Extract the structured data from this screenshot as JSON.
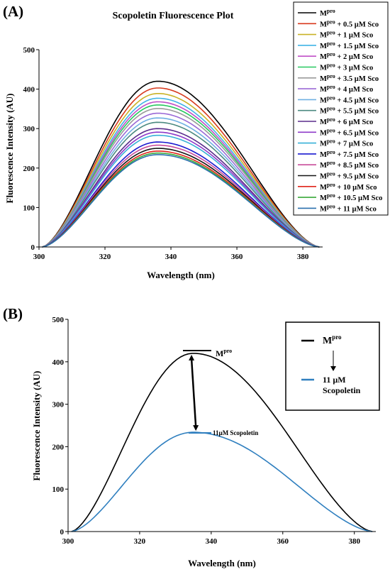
{
  "panels": {
    "a_label": "(A)",
    "b_label": "(B)"
  },
  "chart_data": [
    {
      "type": "line",
      "title": "Scopoletin Fluorescence Plot",
      "xlabel": "Wavelength (nm)",
      "ylabel": "Fluorescence Intensity (AU)",
      "xlim": [
        300,
        386
      ],
      "ylim": [
        0,
        500
      ],
      "xticks": [
        300,
        320,
        340,
        360,
        380
      ],
      "yticks": [
        0,
        100,
        200,
        300,
        400,
        500
      ],
      "peak_x": 336,
      "legend_position": "top-right",
      "series": [
        {
          "name_base": "M",
          "name_sup": "pro",
          "name_rest": "",
          "color": "#000000",
          "peak": 420
        },
        {
          "name_base": "M",
          "name_sup": "pro",
          "name_rest": " + 0.5 µM Sco",
          "color": "#d83a1e",
          "peak": 403
        },
        {
          "name_base": "M",
          "name_sup": "pro",
          "name_rest": " + 1 µM Sco",
          "color": "#c9b227",
          "peak": 389
        },
        {
          "name_base": "M",
          "name_sup": "pro",
          "name_rest": " + 1.5 µM Sco",
          "color": "#41b4e6",
          "peak": 377
        },
        {
          "name_base": "M",
          "name_sup": "pro",
          "name_rest": " + 2 µM Sco",
          "color": "#c050c8",
          "peak": 368
        },
        {
          "name_base": "M",
          "name_sup": "pro",
          "name_rest": " + 3 µM Sco",
          "color": "#28c860",
          "peak": 360
        },
        {
          "name_base": "M",
          "name_sup": "pro",
          "name_rest": " + 3.5 µM Sco",
          "color": "#9a9a9a",
          "peak": 351
        },
        {
          "name_base": "M",
          "name_sup": "pro",
          "name_rest": " + 4 µM Sco",
          "color": "#9b6ad6",
          "peak": 339
        },
        {
          "name_base": "M",
          "name_sup": "pro",
          "name_rest": " + 4.5 µM Sco",
          "color": "#6fb0e2",
          "peak": 327
        },
        {
          "name_base": "M",
          "name_sup": "pro",
          "name_rest": " + 5.5 µM Sco",
          "color": "#4c8a80",
          "peak": 316
        },
        {
          "name_base": "M",
          "name_sup": "pro",
          "name_rest": " + 6 µM Sco",
          "color": "#5a2d8c",
          "peak": 300
        },
        {
          "name_base": "M",
          "name_sup": "pro",
          "name_rest": " + 6.5 µM Sco",
          "color": "#8e3ac9",
          "peak": 291
        },
        {
          "name_base": "M",
          "name_sup": "pro",
          "name_rest": " + 7 µM Sco",
          "color": "#37b0d8",
          "peak": 283
        },
        {
          "name_base": "M",
          "name_sup": "pro",
          "name_rest": " + 7.5 µM Sco",
          "color": "#1a1ad0",
          "peak": 266
        },
        {
          "name_base": "M",
          "name_sup": "pro",
          "name_rest": " + 8.5 µM Sco",
          "color": "#c84c9a",
          "peak": 258
        },
        {
          "name_base": "M",
          "name_sup": "pro",
          "name_rest": " + 9.5 µM Sco",
          "color": "#151515",
          "peak": 250
        },
        {
          "name_base": "M",
          "name_sup": "pro",
          "name_rest": " + 10 µM Sco",
          "color": "#e0241a",
          "peak": 243
        },
        {
          "name_base": "M",
          "name_sup": "pro",
          "name_rest": " + 10.5 µM Sco",
          "color": "#3aa83a",
          "peak": 238
        },
        {
          "name_base": "M",
          "name_sup": "pro",
          "name_rest": " + 11 µM Sco",
          "color": "#2a6fae",
          "peak": 234
        }
      ]
    },
    {
      "type": "line",
      "title": "",
      "xlabel": "Wavelength (nm)",
      "ylabel": "Fluorescence Intensity (AU)",
      "xlim": [
        300,
        386
      ],
      "ylim": [
        0,
        500
      ],
      "xticks": [
        300,
        320,
        340,
        360,
        380
      ],
      "yticks": [
        0,
        100,
        200,
        300,
        400,
        500
      ],
      "peak_x": 335,
      "legend_position": "top-right",
      "series": [
        {
          "name_base": "M",
          "name_sup": "pro",
          "name_rest": "",
          "color": "#000000",
          "peak": 420
        },
        {
          "name_base": "11 µM",
          "name_sup": "",
          "name_rest": "Scopoletin",
          "color": "#2f7fbf",
          "peak": 234
        }
      ],
      "annotations": {
        "top_base": "M",
        "top_sup": "pro",
        "bottom": "11µM Scopoletin"
      }
    }
  ]
}
